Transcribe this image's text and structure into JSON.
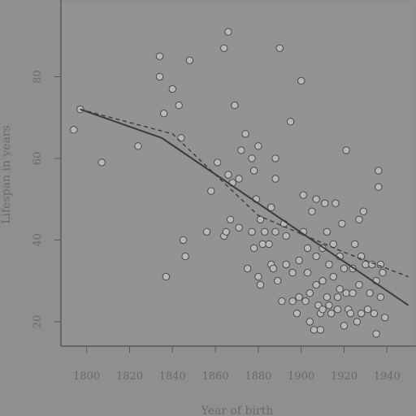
{
  "chart_data": {
    "type": "scatter",
    "title": "",
    "xlabel": "Year of birth",
    "ylabel": "Lifespan in years",
    "xlim": [
      1788,
      1952
    ],
    "ylim": [
      14,
      98
    ],
    "xticks": [
      1800,
      1820,
      1840,
      1860,
      1880,
      1900,
      1920,
      1940
    ],
    "yticks": [
      20,
      40,
      60,
      80
    ],
    "grid": false,
    "legend": "none",
    "colors": {
      "background": "#8f8f8f",
      "point": "#b8b8b8",
      "line": "#3c3c3c"
    },
    "points": [
      [
        1794,
        67
      ],
      [
        1797,
        72
      ],
      [
        1807,
        59
      ],
      [
        1824,
        63
      ],
      [
        1834,
        85
      ],
      [
        1834,
        80
      ],
      [
        1836,
        71
      ],
      [
        1837,
        31
      ],
      [
        1840,
        77
      ],
      [
        1843,
        73
      ],
      [
        1844,
        65
      ],
      [
        1845,
        40
      ],
      [
        1846,
        36
      ],
      [
        1848,
        84
      ],
      [
        1856,
        42
      ],
      [
        1858,
        52
      ],
      [
        1861,
        59
      ],
      [
        1864,
        41
      ],
      [
        1864,
        87
      ],
      [
        1865,
        42
      ],
      [
        1866,
        91
      ],
      [
        1866,
        56
      ],
      [
        1867,
        45
      ],
      [
        1868,
        54
      ],
      [
        1869,
        73
      ],
      [
        1871,
        55
      ],
      [
        1871,
        43
      ],
      [
        1872,
        62
      ],
      [
        1874,
        66
      ],
      [
        1875,
        33
      ],
      [
        1877,
        60
      ],
      [
        1877,
        42
      ],
      [
        1878,
        38
      ],
      [
        1878,
        57
      ],
      [
        1879,
        50
      ],
      [
        1880,
        31
      ],
      [
        1880,
        63
      ],
      [
        1881,
        45
      ],
      [
        1881,
        29
      ],
      [
        1882,
        39
      ],
      [
        1883,
        42
      ],
      [
        1885,
        39
      ],
      [
        1886,
        48
      ],
      [
        1886,
        34
      ],
      [
        1887,
        33
      ],
      [
        1888,
        42
      ],
      [
        1888,
        55
      ],
      [
        1888,
        60
      ],
      [
        1889,
        30
      ],
      [
        1890,
        87
      ],
      [
        1891,
        25
      ],
      [
        1892,
        44
      ],
      [
        1893,
        41
      ],
      [
        1893,
        34
      ],
      [
        1895,
        69
      ],
      [
        1896,
        25
      ],
      [
        1896,
        32
      ],
      [
        1898,
        22
      ],
      [
        1899,
        35
      ],
      [
        1899,
        26
      ],
      [
        1900,
        79
      ],
      [
        1901,
        42
      ],
      [
        1901,
        51
      ],
      [
        1902,
        25
      ],
      [
        1903,
        32
      ],
      [
        1903,
        38
      ],
      [
        1904,
        27
      ],
      [
        1905,
        47
      ],
      [
        1904,
        20
      ],
      [
        1906,
        18
      ],
      [
        1907,
        50
      ],
      [
        1907,
        36
      ],
      [
        1907,
        29
      ],
      [
        1908,
        24
      ],
      [
        1909,
        18
      ],
      [
        1909,
        22
      ],
      [
        1910,
        30
      ],
      [
        1910,
        23
      ],
      [
        1910,
        38
      ],
      [
        1911,
        49
      ],
      [
        1912,
        42
      ],
      [
        1912,
        26
      ],
      [
        1913,
        34
      ],
      [
        1913,
        24
      ],
      [
        1914,
        22
      ],
      [
        1915,
        39
      ],
      [
        1915,
        31
      ],
      [
        1916,
        49
      ],
      [
        1917,
        26
      ],
      [
        1917,
        23
      ],
      [
        1918,
        36
      ],
      [
        1918,
        28
      ],
      [
        1919,
        44
      ],
      [
        1920,
        19
      ],
      [
        1920,
        33
      ],
      [
        1921,
        27
      ],
      [
        1921,
        62
      ],
      [
        1922,
        23
      ],
      [
        1923,
        22
      ],
      [
        1924,
        33
      ],
      [
        1924,
        27
      ],
      [
        1925,
        39
      ],
      [
        1926,
        20
      ],
      [
        1927,
        45
      ],
      [
        1927,
        29
      ],
      [
        1928,
        22
      ],
      [
        1928,
        36
      ],
      [
        1929,
        47
      ],
      [
        1930,
        34
      ],
      [
        1931,
        23
      ],
      [
        1932,
        27
      ],
      [
        1933,
        34
      ],
      [
        1934,
        22
      ],
      [
        1935,
        17
      ],
      [
        1935,
        30
      ],
      [
        1936,
        53
      ],
      [
        1936,
        57
      ],
      [
        1937,
        34
      ],
      [
        1937,
        26
      ],
      [
        1938,
        32
      ],
      [
        1939,
        21
      ]
    ],
    "series": [
      {
        "style": "solid",
        "x": [
          1797,
          1835,
          1950
        ],
        "y": [
          72,
          65,
          24
        ]
      },
      {
        "style": "dashed",
        "x": [
          1797,
          1840,
          1880,
          1920,
          1950
        ],
        "y": [
          72,
          66,
          46,
          37,
          31
        ]
      }
    ]
  },
  "labels": {
    "x_tick_labels": [
      "1800",
      "1820",
      "1840",
      "1860",
      "1880",
      "1900",
      "1920",
      "1940"
    ],
    "y_tick_labels": [
      "20",
      "40",
      "60",
      "80"
    ]
  }
}
